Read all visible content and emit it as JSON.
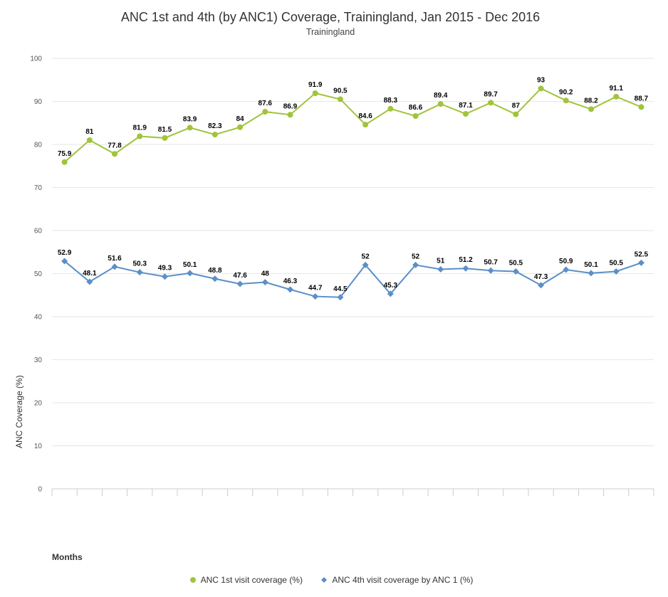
{
  "chart_data": {
    "type": "line",
    "title": "ANC 1st and 4th (by ANC1) Coverage, Trainingland, Jan 2015 - Dec 2016",
    "subtitle": "Trainingland",
    "xlabel": "Months",
    "ylabel": "ANC Coverage (%)",
    "ylim": [
      0,
      100
    ],
    "yticks": [
      0,
      10,
      20,
      30,
      40,
      50,
      60,
      70,
      80,
      90,
      100
    ],
    "grid": true,
    "legend_position": "bottom-center",
    "x_count": 24,
    "series": [
      {
        "name": "ANC 1st visit coverage (%)",
        "color": "#a0c43a",
        "marker": "circle",
        "values": [
          75.9,
          81,
          77.8,
          81.9,
          81.5,
          83.9,
          82.3,
          84,
          87.6,
          86.9,
          91.9,
          90.5,
          84.6,
          88.3,
          86.6,
          89.4,
          87.1,
          89.7,
          87,
          93,
          90.2,
          88.2,
          91.1,
          88.7
        ]
      },
      {
        "name": "ANC 4th visit coverage by ANC 1 (%)",
        "color": "#5b8fc7",
        "marker": "diamond",
        "values": [
          52.9,
          48.1,
          51.6,
          50.3,
          49.3,
          50.1,
          48.8,
          47.6,
          48,
          46.3,
          44.7,
          44.5,
          52,
          45.3,
          52,
          51,
          51.2,
          50.7,
          50.5,
          47.3,
          50.9,
          50.1,
          50.5,
          52.5
        ]
      }
    ]
  }
}
